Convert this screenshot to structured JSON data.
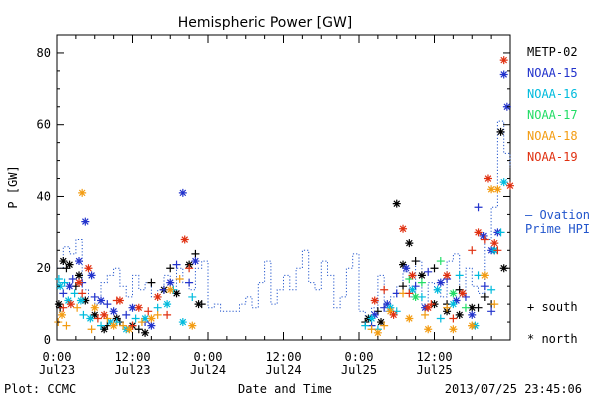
{
  "chart_data": {
    "type": "scatter",
    "title": "Hemispheric Power [GW]",
    "ylabel": "P [GW]",
    "xlabel": "Date and Time",
    "ylim": [
      0,
      85
    ],
    "yticks": [
      0,
      20,
      40,
      60,
      80
    ],
    "xlim": [
      0,
      72
    ],
    "x_unit": "hours since 2013-07-23 00:00 UT",
    "xticks": [
      {
        "x": 0,
        "time": "0:00",
        "date": "Jul23"
      },
      {
        "x": 12,
        "time": "12:00",
        "date": "Jul23"
      },
      {
        "x": 24,
        "time": "0:00",
        "date": "Jul24"
      },
      {
        "x": 36,
        "time": "12:00",
        "date": "Jul24"
      },
      {
        "x": 48,
        "time": "0:00",
        "date": "Jul25"
      },
      {
        "x": 60,
        "time": "12:00",
        "date": "Jul25"
      }
    ],
    "legend_placement": "right",
    "footer_left": "Plot: CCMC",
    "footer_right": "2013/07/25 23:45:06",
    "marker_legend": {
      "south": "+ south",
      "north": "* north"
    },
    "ovation_label_line1": "— Ovation",
    "ovation_label_line2": "Prime HPI",
    "ovation_color": "#2255cc",
    "ovation_step": {
      "x": [
        0,
        1,
        2,
        3,
        4,
        5,
        6,
        7,
        8,
        9,
        10,
        11,
        12,
        13,
        14,
        15,
        16,
        17,
        18,
        19,
        20,
        21,
        22,
        23,
        24,
        25,
        26,
        27,
        28,
        29,
        30,
        31,
        32,
        33,
        34,
        35,
        36,
        37,
        38,
        39,
        40,
        41,
        42,
        43,
        44,
        45,
        46,
        47,
        48,
        49,
        50,
        51,
        52,
        53,
        54,
        55,
        56,
        57,
        58,
        59,
        60,
        61,
        62,
        63,
        64,
        65,
        66,
        67,
        68,
        69,
        70,
        71,
        72
      ],
      "y": [
        20,
        26,
        24,
        28,
        14,
        12,
        10,
        16,
        18,
        20,
        15,
        12,
        18,
        14,
        16,
        12,
        14,
        18,
        15,
        20,
        16,
        14,
        20,
        22,
        9,
        10,
        8,
        8,
        8,
        10,
        12,
        9,
        16,
        22,
        10,
        14,
        18,
        14,
        20,
        25,
        16,
        14,
        22,
        18,
        9,
        12,
        20,
        24,
        8,
        6,
        9,
        18,
        8,
        12,
        15,
        19,
        12,
        22,
        10,
        16,
        14,
        12,
        22,
        24,
        12,
        20,
        15,
        13,
        28,
        37,
        61,
        52,
        48
      ]
    },
    "series": [
      {
        "name": "METP-02",
        "color": "#000000",
        "marker": "+",
        "points": [
          [
            0.5,
            9
          ],
          [
            1.5,
            20
          ],
          [
            3,
            15
          ],
          [
            8,
            4
          ],
          [
            10,
            5
          ],
          [
            13,
            3
          ],
          [
            15,
            16
          ],
          [
            18,
            20
          ],
          [
            22,
            24
          ],
          [
            23,
            10
          ],
          [
            49,
            5
          ],
          [
            51,
            8
          ],
          [
            55,
            15
          ],
          [
            57,
            22
          ],
          [
            60,
            20
          ],
          [
            62,
            10
          ],
          [
            64,
            14
          ],
          [
            67,
            9
          ],
          [
            68,
            12
          ],
          [
            69,
            10
          ]
        ]
      },
      {
        "name": "METP-02",
        "color": "#000000",
        "marker": "*",
        "points": [
          [
            0.3,
            10
          ],
          [
            1,
            22
          ],
          [
            2,
            21
          ],
          [
            3.5,
            18
          ],
          [
            4.5,
            11
          ],
          [
            6,
            7
          ],
          [
            7.5,
            3
          ],
          [
            9.5,
            6
          ],
          [
            12,
            4
          ],
          [
            14,
            2
          ],
          [
            17,
            14
          ],
          [
            19,
            13
          ],
          [
            21,
            21
          ],
          [
            22.5,
            10
          ],
          [
            49.5,
            6
          ],
          [
            51.5,
            5
          ],
          [
            54,
            38
          ],
          [
            55,
            21
          ],
          [
            56,
            27
          ],
          [
            58,
            18
          ],
          [
            60,
            10
          ],
          [
            62,
            8
          ],
          [
            64,
            7
          ],
          [
            66,
            9
          ],
          [
            69.5,
            25
          ],
          [
            70.5,
            58
          ],
          [
            71,
            20
          ]
        ]
      },
      {
        "name": "NOAA-15",
        "color": "#2233cc",
        "marker": "+",
        "points": [
          [
            1,
            13
          ],
          [
            2.5,
            17
          ],
          [
            4,
            16
          ],
          [
            6,
            12
          ],
          [
            8,
            10
          ],
          [
            11,
            7
          ],
          [
            14,
            5
          ],
          [
            17,
            14
          ],
          [
            19,
            21
          ],
          [
            21,
            16
          ],
          [
            50,
            4
          ],
          [
            52,
            9
          ],
          [
            54,
            13
          ],
          [
            57,
            15
          ],
          [
            59,
            19
          ],
          [
            62,
            17
          ],
          [
            65,
            12
          ],
          [
            67,
            37
          ],
          [
            68,
            15
          ],
          [
            69,
            8
          ]
        ]
      },
      {
        "name": "NOAA-15",
        "color": "#2233cc",
        "marker": "*",
        "points": [
          [
            2,
            15
          ],
          [
            3.5,
            22
          ],
          [
            4.5,
            33
          ],
          [
            5.5,
            18
          ],
          [
            7,
            11
          ],
          [
            9,
            8
          ],
          [
            12,
            9
          ],
          [
            15,
            4
          ],
          [
            18,
            16
          ],
          [
            20,
            41
          ],
          [
            22,
            22
          ],
          [
            50.5,
            7
          ],
          [
            52.5,
            10
          ],
          [
            55.5,
            20
          ],
          [
            58.5,
            9
          ],
          [
            61,
            16
          ],
          [
            63.5,
            11
          ],
          [
            66,
            7
          ],
          [
            67.8,
            29
          ],
          [
            69,
            25
          ],
          [
            70,
            30
          ],
          [
            71,
            74
          ],
          [
            71.5,
            65
          ]
        ]
      },
      {
        "name": "NOAA-16",
        "color": "#00bbdd",
        "marker": "+",
        "points": [
          [
            0.3,
            17
          ],
          [
            1.2,
            16
          ],
          [
            2.8,
            13
          ],
          [
            4.2,
            7
          ],
          [
            7,
            4
          ],
          [
            9.5,
            5
          ],
          [
            12.5,
            6
          ],
          [
            16,
            9
          ],
          [
            18.5,
            14
          ],
          [
            21.5,
            12
          ],
          [
            49,
            4
          ],
          [
            51,
            3
          ],
          [
            54,
            8
          ],
          [
            58,
            12
          ],
          [
            61,
            6
          ],
          [
            64,
            18
          ],
          [
            67,
            18
          ],
          [
            69,
            14
          ],
          [
            70.5,
            30
          ]
        ]
      },
      {
        "name": "NOAA-16",
        "color": "#00bbdd",
        "marker": "*",
        "points": [
          [
            0.5,
            15
          ],
          [
            1.8,
            11
          ],
          [
            3.8,
            11
          ],
          [
            5.3,
            6
          ],
          [
            8.5,
            5
          ],
          [
            11,
            3
          ],
          [
            14,
            6
          ],
          [
            17.5,
            10
          ],
          [
            20,
            5
          ],
          [
            50,
            6
          ],
          [
            53,
            9
          ],
          [
            56.5,
            14
          ],
          [
            60.5,
            14
          ],
          [
            63,
            10
          ],
          [
            66.5,
            4
          ],
          [
            69.5,
            25
          ],
          [
            71,
            44
          ]
        ]
      },
      {
        "name": "NOAA-17",
        "color": "#22dd66",
        "marker": "+",
        "points": [
          [
            56,
            17
          ],
          [
            58,
            16
          ],
          [
            61,
            22
          ],
          [
            65,
            9
          ]
        ]
      },
      {
        "name": "NOAA-17",
        "color": "#22dd66",
        "marker": "*",
        "points": [
          [
            57,
            12
          ],
          [
            63,
            13
          ]
        ]
      },
      {
        "name": "NOAA-18",
        "color": "#f39c12",
        "marker": "+",
        "points": [
          [
            0.2,
            5
          ],
          [
            1.5,
            4
          ],
          [
            3.2,
            9
          ],
          [
            5.5,
            3
          ],
          [
            8,
            6
          ],
          [
            10.5,
            4
          ],
          [
            13.5,
            5
          ],
          [
            16,
            7
          ],
          [
            19.5,
            17
          ],
          [
            50,
            3
          ],
          [
            52,
            4
          ],
          [
            55,
            13
          ],
          [
            58.5,
            7
          ],
          [
            62,
            9
          ],
          [
            66,
            4
          ],
          [
            69.5,
            10
          ]
        ]
      },
      {
        "name": "NOAA-18",
        "color": "#f39c12",
        "marker": "*",
        "points": [
          [
            0.8,
            7
          ],
          [
            4,
            41
          ],
          [
            6,
            9
          ],
          [
            9,
            4
          ],
          [
            11.5,
            3
          ],
          [
            15,
            6
          ],
          [
            18,
            14
          ],
          [
            21.5,
            4
          ],
          [
            51,
            2
          ],
          [
            53,
            8
          ],
          [
            56,
            6
          ],
          [
            59,
            3
          ],
          [
            63,
            3
          ],
          [
            66,
            4
          ],
          [
            68,
            18
          ],
          [
            69,
            42
          ],
          [
            70,
            42
          ]
        ]
      },
      {
        "name": "NOAA-19",
        "color": "#e03010",
        "marker": "+",
        "points": [
          [
            1,
            9
          ],
          [
            4,
            13
          ],
          [
            6.5,
            6
          ],
          [
            9.5,
            11
          ],
          [
            12,
            4
          ],
          [
            14.5,
            8
          ],
          [
            17.5,
            7
          ],
          [
            21,
            20
          ],
          [
            52,
            14
          ],
          [
            56,
            13
          ],
          [
            59.5,
            10
          ],
          [
            63,
            6
          ],
          [
            66,
            25
          ],
          [
            68,
            28
          ],
          [
            70,
            25
          ]
        ]
      },
      {
        "name": "NOAA-19",
        "color": "#e03010",
        "marker": "*",
        "points": [
          [
            2.2,
            10
          ],
          [
            3.5,
            16
          ],
          [
            5,
            20
          ],
          [
            7.5,
            7
          ],
          [
            10,
            11
          ],
          [
            13,
            9
          ],
          [
            16,
            12
          ],
          [
            20.3,
            28
          ],
          [
            50.5,
            11
          ],
          [
            53.5,
            7
          ],
          [
            55,
            31
          ],
          [
            56.5,
            18
          ],
          [
            59,
            9
          ],
          [
            62,
            18
          ],
          [
            64.5,
            13
          ],
          [
            67,
            30
          ],
          [
            68.5,
            45
          ],
          [
            69.5,
            27
          ],
          [
            71,
            78
          ],
          [
            72,
            43
          ]
        ]
      }
    ]
  }
}
